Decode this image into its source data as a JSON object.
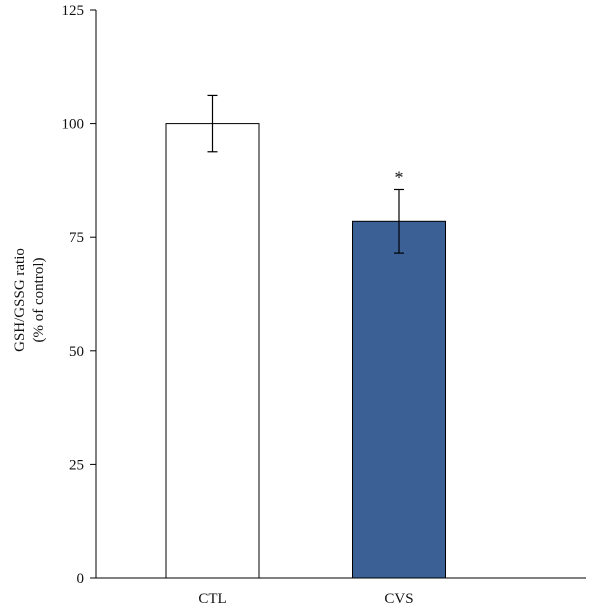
{
  "chart_data": {
    "type": "bar",
    "title": "",
    "categories": [
      "CTL",
      "CVS"
    ],
    "values": [
      100,
      78.5
    ],
    "error": [
      6.2,
      7.0
    ],
    "colors": [
      "#ffffff",
      "#3a6096"
    ],
    "edge_color": "#000000",
    "ylabel_lines": [
      "GSH/GSSG ratio",
      "(% of control)"
    ],
    "xlabel": "",
    "ylim": [
      0,
      125
    ],
    "yticks": [
      0,
      25,
      50,
      75,
      100,
      125
    ],
    "grid": false,
    "annotations": [
      {
        "category": "CVS",
        "text": "*"
      }
    ]
  }
}
